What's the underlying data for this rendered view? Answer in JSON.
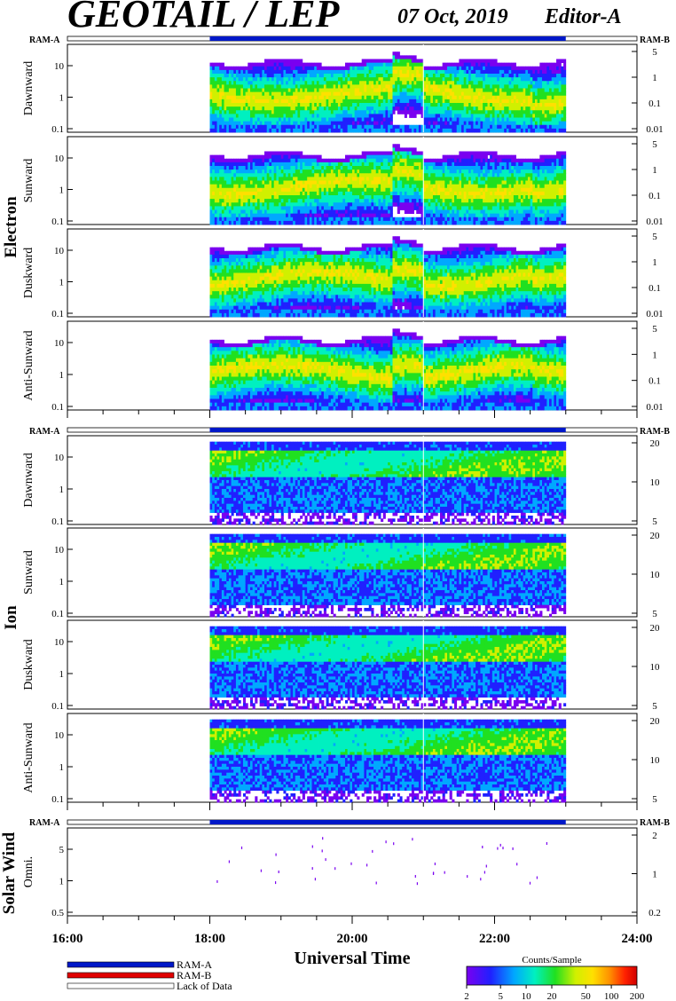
{
  "header": {
    "title": "GEOTAIL / LEP",
    "date": "07 Oct, 2019",
    "editor": "Editor-A"
  },
  "labels": {
    "ram_a": "RAM-A",
    "ram_b": "RAM-B",
    "xlabel": "Universal Time",
    "colorbar_title": "Counts/Sample"
  },
  "legend": [
    {
      "label": "RAM-A",
      "color": "#0018c8"
    },
    {
      "label": "RAM-B",
      "color": "#e00000"
    },
    {
      "label": "Lack of Data",
      "color": "#ffffff"
    }
  ],
  "colors": {
    "ram_a_bar": "#0018c8",
    "colormap": [
      "#7a00f0",
      "#2020ff",
      "#00a8ff",
      "#00f0c0",
      "#20e020",
      "#d0f000",
      "#ffe000",
      "#ff9000",
      "#ff2000",
      "#d00000"
    ]
  },
  "chart_data": {
    "type": "heatmap",
    "x_axis": {
      "range": [
        "16:00",
        "24:00"
      ],
      "ticks": [
        "16:00",
        "18:00",
        "20:00",
        "22:00",
        "24:00"
      ]
    },
    "ram_a_coverage": [
      "18:00",
      "23:00"
    ],
    "groups": [
      {
        "name": "Electron",
        "panels": [
          {
            "label": "Dawnward",
            "left_ticks": [
              "10",
              "1",
              "0.1"
            ],
            "right_ticks": [
              "5",
              "1",
              "0.1",
              "0.01"
            ],
            "scale": "log"
          },
          {
            "label": "Sunward",
            "left_ticks": [
              "10",
              "1",
              "0.1"
            ],
            "right_ticks": [
              "5",
              "1",
              "0.1",
              "0.01"
            ],
            "scale": "log"
          },
          {
            "label": "Duskward",
            "left_ticks": [
              "10",
              "1",
              "0.1"
            ],
            "right_ticks": [
              "5",
              "1",
              "0.1",
              "0.01"
            ],
            "scale": "log"
          },
          {
            "label": "Anti-Sunward",
            "left_ticks": [
              "10",
              "1",
              "0.1"
            ],
            "right_ticks": [
              "5",
              "1",
              "0.1",
              "0.01"
            ],
            "scale": "log"
          }
        ]
      },
      {
        "name": "Ion",
        "panels": [
          {
            "label": "Dawnward",
            "left_ticks": [
              "10",
              "1",
              "0.1"
            ],
            "right_ticks": [
              "20",
              "10",
              "5"
            ],
            "scale": "log"
          },
          {
            "label": "Sunward",
            "left_ticks": [
              "10",
              "1",
              "0.1"
            ],
            "right_ticks": [
              "20",
              "10",
              "5"
            ],
            "scale": "log"
          },
          {
            "label": "Duskward",
            "left_ticks": [
              "10",
              "1",
              "0.1"
            ],
            "right_ticks": [
              "20",
              "10",
              "5"
            ],
            "scale": "log"
          },
          {
            "label": "Anti-Sunward",
            "left_ticks": [
              "10",
              "1",
              "0.1"
            ],
            "right_ticks": [
              "20",
              "10",
              "5"
            ],
            "scale": "log"
          }
        ]
      },
      {
        "name": "Solar Wind",
        "panels": [
          {
            "label": "Omni.",
            "left_ticks": [
              "5",
              "1",
              "0.5"
            ],
            "right_ticks": [
              "2",
              "1",
              "0.2"
            ],
            "scale": "log"
          }
        ]
      }
    ],
    "colorbar": {
      "title": "Counts/Sample",
      "ticks": [
        "2",
        "5",
        "10",
        "20",
        "50",
        "100",
        "200"
      ],
      "scale": "log"
    }
  }
}
